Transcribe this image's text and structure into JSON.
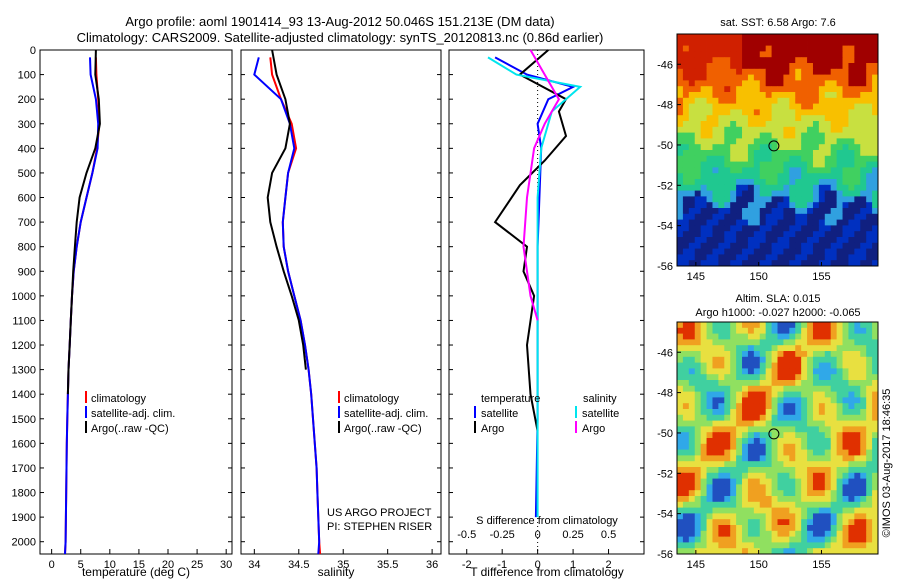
{
  "header": {
    "line1": "Argo profile: aoml 1901414_93 13-Aug-2012 50.046S 151.213E (DM data)",
    "line2": "Climatology: CARS2009. Satellite-adjusted climatology: synTS_20120813.nc (0.86d earlier)"
  },
  "colors": {
    "climatology": "#ff0000",
    "satellite": "#0000ff",
    "argo": "#000000",
    "sal_satellite": "#00e5ee",
    "sal_argo": "#ff00ff"
  },
  "chart_data": [
    {
      "type": "line",
      "id": "temperature",
      "xlabel": "temperature (deg C)",
      "ylabel": "",
      "xlim": [
        -2,
        31
      ],
      "ylim": [
        2050,
        0
      ],
      "xticks": [
        0,
        5,
        10,
        15,
        20,
        25,
        30
      ],
      "yticks": [
        0,
        100,
        200,
        300,
        400,
        500,
        600,
        700,
        800,
        900,
        1000,
        1100,
        1200,
        1300,
        1400,
        1500,
        1600,
        1700,
        1800,
        1900,
        2000
      ],
      "legend": [
        "climatology",
        "satellite-adj. clim.",
        "Argo(..raw -QC)"
      ],
      "series": [
        {
          "name": "climatology",
          "color": "#ff0000",
          "x": [
            7.6,
            7.7,
            8.0,
            8.2,
            7.8,
            7.0,
            6.0,
            5.0,
            4.3,
            3.8,
            3.5,
            3.3,
            3.1,
            2.9,
            2.8,
            2.7,
            2.6,
            2.55,
            2.5,
            2.45,
            2.4,
            2.3
          ],
          "y": [
            30,
            100,
            200,
            300,
            400,
            500,
            600,
            700,
            800,
            900,
            1000,
            1100,
            1200,
            1300,
            1400,
            1500,
            1600,
            1700,
            1800,
            1900,
            2000,
            2050
          ]
        },
        {
          "name": "satellite-adj. clim.",
          "color": "#0000ff",
          "x": [
            6.6,
            6.7,
            7.6,
            8.0,
            7.9,
            7.0,
            6.0,
            5.0,
            4.3,
            3.8,
            3.5,
            3.3,
            3.1,
            2.9,
            2.8,
            2.7,
            2.6,
            2.55,
            2.5,
            2.45,
            2.4,
            2.3
          ],
          "y": [
            30,
            100,
            200,
            300,
            400,
            500,
            600,
            700,
            800,
            900,
            1000,
            1100,
            1200,
            1300,
            1400,
            1500,
            1600,
            1700,
            1800,
            1900,
            2000,
            2050
          ]
        },
        {
          "name": "Argo(..raw -QC)",
          "color": "#000000",
          "x": [
            7.6,
            7.5,
            8.1,
            8.3,
            7.5,
            6.0,
            4.8,
            4.3,
            4.0,
            3.7,
            3.5,
            3.3,
            3.1,
            2.9,
            2.8
          ],
          "y": [
            0,
            100,
            200,
            300,
            400,
            500,
            600,
            700,
            800,
            900,
            1000,
            1100,
            1200,
            1300,
            1400
          ]
        }
      ]
    },
    {
      "type": "line",
      "id": "salinity",
      "xlabel": "salinity",
      "xlim": [
        33.85,
        36.1
      ],
      "ylim": [
        2050,
        0
      ],
      "xticks": [
        34,
        34.5,
        35,
        35.5,
        36
      ],
      "legend": [
        "climatology",
        "satellite-adj. clim.",
        "Argo(..raw -QC)"
      ],
      "series": [
        {
          "name": "climatology",
          "color": "#ff0000",
          "x": [
            34.18,
            34.2,
            34.3,
            34.42,
            34.47,
            34.38,
            34.35,
            34.32,
            34.33,
            34.38,
            34.45,
            34.52,
            34.57,
            34.61,
            34.64,
            34.66,
            34.68,
            34.7,
            34.71,
            34.72,
            34.73,
            34.74
          ],
          "y": [
            30,
            100,
            200,
            300,
            400,
            500,
            600,
            700,
            800,
            900,
            1000,
            1100,
            1200,
            1300,
            1400,
            1500,
            1600,
            1700,
            1800,
            1900,
            2000,
            2050
          ]
        },
        {
          "name": "satellite-adj. clim.",
          "color": "#0000ff",
          "x": [
            34.05,
            34.0,
            34.3,
            34.4,
            34.45,
            34.38,
            34.35,
            34.32,
            34.33,
            34.38,
            34.45,
            34.52,
            34.57,
            34.61,
            34.64,
            34.66,
            34.68,
            34.7,
            34.71,
            34.72,
            34.73,
            34.72
          ],
          "y": [
            30,
            100,
            200,
            300,
            400,
            500,
            600,
            700,
            800,
            900,
            1000,
            1100,
            1200,
            1300,
            1400,
            1500,
            1600,
            1700,
            1800,
            1900,
            2000,
            2050
          ]
        },
        {
          "name": "Argo(..raw -QC)",
          "color": "#000000",
          "x": [
            34.2,
            34.25,
            34.35,
            34.4,
            34.35,
            34.2,
            34.15,
            34.18,
            34.25,
            34.33,
            34.42,
            34.5,
            34.55,
            34.58
          ],
          "y": [
            0,
            100,
            200,
            300,
            400,
            500,
            600,
            700,
            800,
            900,
            1000,
            1100,
            1200,
            1300
          ]
        }
      ],
      "annotations": [
        "US ARGO PROJECT",
        "PI: STEPHEN RISER"
      ]
    },
    {
      "type": "line",
      "id": "differences",
      "xlabel": "T difference from climatology",
      "xlabel_top": "S difference from climatology",
      "xlim": [
        -2.5,
        3
      ],
      "ylim": [
        2050,
        0
      ],
      "xticks": [
        -2,
        -1,
        0,
        1,
        2
      ],
      "xticks_top": [
        -0.5,
        -0.25,
        0,
        0.25,
        0.5
      ],
      "legend_titles": [
        "temperature",
        "salinity"
      ],
      "legend": [
        "satellite",
        "Argo",
        "satellite",
        "Argo"
      ],
      "series": [
        {
          "name": "satellite",
          "color": "#0000ff",
          "x": [
            -1.2,
            -0.3,
            1.0,
            0.3,
            0.0,
            0.1,
            0.05,
            0.0,
            0.0,
            0.0,
            -0.05
          ],
          "y": [
            30,
            100,
            150,
            200,
            300,
            400,
            600,
            800,
            1000,
            1500,
            1900
          ]
        },
        {
          "name": "Argo",
          "color": "#000000",
          "x": [
            0.3,
            -0.5,
            0.8,
            0.6,
            0.8,
            0.2,
            -0.5,
            -1.2,
            -0.3,
            -0.4,
            -0.1,
            -0.3,
            -0.2,
            0.0
          ],
          "y": [
            0,
            100,
            200,
            250,
            350,
            450,
            550,
            700,
            800,
            900,
            1000,
            1200,
            1400,
            1550
          ]
        },
        {
          "name": "satellite",
          "color": "#00e5ee",
          "x": [
            -1.4,
            -0.6,
            1.2,
            0.4,
            0.1,
            0.0,
            0.0,
            0.0,
            0.0
          ],
          "y": [
            30,
            100,
            150,
            250,
            400,
            600,
            900,
            1300,
            1900
          ]
        },
        {
          "name": "Argo",
          "color": "#ff00ff",
          "x": [
            -0.2,
            0.2,
            0.6,
            0.2,
            -0.1,
            -0.3,
            -0.4,
            -0.2,
            0.0
          ],
          "y": [
            0,
            100,
            200,
            300,
            400,
            600,
            800,
            1000,
            1100
          ]
        }
      ]
    }
  ],
  "maps": {
    "sst": {
      "title": "sat. SST: 6.58 Argo: 7.6",
      "xticks": [
        "145",
        "150",
        "155"
      ],
      "yticks": [
        "-46",
        "-48",
        "-50",
        "-52",
        "-54",
        "-56"
      ]
    },
    "sla": {
      "title_line1": "Altim. SLA: 0.015",
      "title_line2": "Argo h1000: -0.027 h2000: -0.065",
      "xticks": [
        "145",
        "150",
        "155"
      ],
      "yticks": [
        "-46",
        "-48",
        "-50",
        "-52",
        "-54",
        "-56"
      ]
    }
  },
  "footer": {
    "stamp": "©IMOS 03-Aug-2017 18:46:35"
  }
}
